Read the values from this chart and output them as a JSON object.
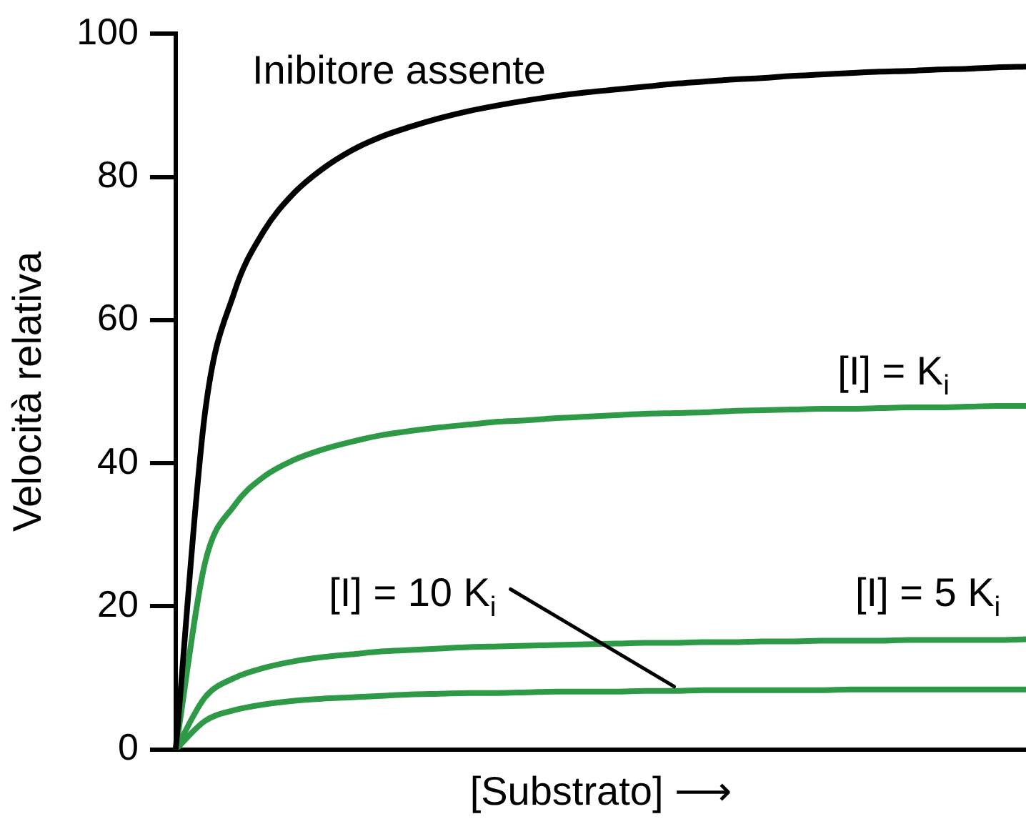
{
  "chart_data": {
    "type": "line",
    "xlabel": "[Substrato] ⟶",
    "ylabel": "Velocità relativa",
    "categories": [
      null,
      null,
      null,
      null,
      null,
      null,
      null,
      null,
      null,
      null,
      null,
      null,
      null,
      null,
      null,
      null,
      null,
      null,
      null,
      null,
      null,
      null,
      null,
      null,
      null,
      null,
      null,
      null,
      null,
      null
    ],
    "series": [
      {
        "name": "Inibitore assente",
        "color": "#000000",
        "values": [
          0,
          47.1,
          63.9,
          72.4,
          77.6,
          81.1,
          83.7,
          85.6,
          87.0,
          88.2,
          89.2,
          90.0,
          90.7,
          91.3,
          91.8,
          92.2,
          92.6,
          93.0,
          93.3,
          93.6,
          93.8,
          94.1,
          94.3,
          94.5,
          94.7,
          94.8,
          95.0,
          95.1,
          95.3,
          95.4
        ]
      },
      {
        "name": "[I] = K$_{i}$",
        "color": "#2e9a48",
        "values": [
          0,
          26.1,
          34.1,
          38.1,
          40.4,
          41.9,
          43.0,
          43.9,
          44.5,
          45.0,
          45.4,
          45.8,
          46.0,
          46.3,
          46.5,
          46.7,
          46.9,
          47.0,
          47.1,
          47.3,
          47.4,
          47.5,
          47.6,
          47.6,
          47.7,
          47.8,
          47.8,
          47.9,
          48.0,
          48.0
        ]
      },
      {
        "name": "[I] = 5 K$_{i}$",
        "color": "#2e9a48",
        "values": [
          0,
          7.3,
          10.0,
          11.4,
          12.3,
          12.9,
          13.3,
          13.7,
          13.9,
          14.1,
          14.3,
          14.4,
          14.5,
          14.6,
          14.7,
          14.8,
          14.9,
          14.9,
          15.0,
          15.0,
          15.1,
          15.1,
          15.2,
          15.2,
          15.2,
          15.3,
          15.3,
          15.3,
          15.3,
          15.4
        ]
      },
      {
        "name": "[I] = 10 K$_{i}$",
        "color": "#2e9a48",
        "values": [
          0,
          4.0,
          5.5,
          6.3,
          6.8,
          7.1,
          7.3,
          7.5,
          7.7,
          7.8,
          7.9,
          7.9,
          8.0,
          8.1,
          8.1,
          8.1,
          8.2,
          8.2,
          8.3,
          8.3,
          8.3,
          8.3,
          8.3,
          8.4,
          8.4,
          8.4,
          8.4,
          8.4,
          8.4,
          8.4
        ]
      }
    ],
    "ylim": [
      0,
      100
    ],
    "yticks": [
      0,
      20,
      40,
      60,
      80,
      100
    ],
    "tick_labels": "y",
    "grid": false,
    "legend": false,
    "marker": "none",
    "line_style": "solid"
  }
}
